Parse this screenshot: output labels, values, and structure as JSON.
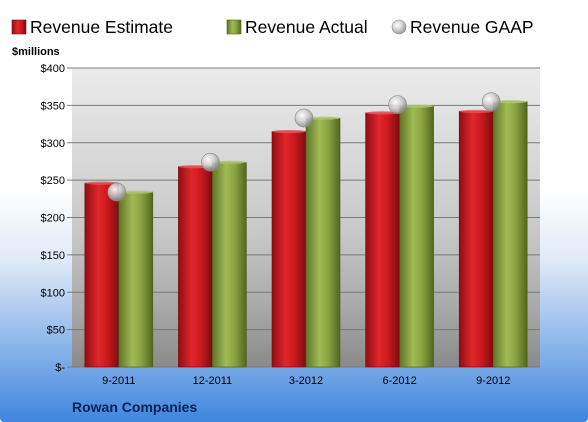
{
  "chart_data": {
    "type": "bar",
    "title": "",
    "ylabel": "$millions",
    "xlabel": "",
    "company": "Rowan Companies",
    "categories": [
      "9-2011",
      "12-2011",
      "3-2012",
      "6-2012",
      "9-2012"
    ],
    "ylim": [
      0,
      400
    ],
    "yticks": [
      0,
      50,
      100,
      150,
      200,
      250,
      300,
      350,
      400
    ],
    "ytick_labels": [
      "$-",
      "$50",
      "$100",
      "$150",
      "$200",
      "$250",
      "$300",
      "$350",
      "$400"
    ],
    "grid": true,
    "legend_position": "top",
    "series": [
      {
        "name": "Revenue Estimate",
        "kind": "bar",
        "color": "#cc1a1f",
        "values": [
          246,
          268,
          315,
          340,
          342
        ]
      },
      {
        "name": "Revenue Actual",
        "kind": "bar",
        "color": "#8aa442",
        "values": [
          234,
          274,
          333,
          349,
          355
        ]
      },
      {
        "name": "Revenue GAAP",
        "kind": "marker",
        "color": "#c0c0c0",
        "values": [
          234,
          274,
          333,
          351,
          355
        ]
      }
    ]
  }
}
